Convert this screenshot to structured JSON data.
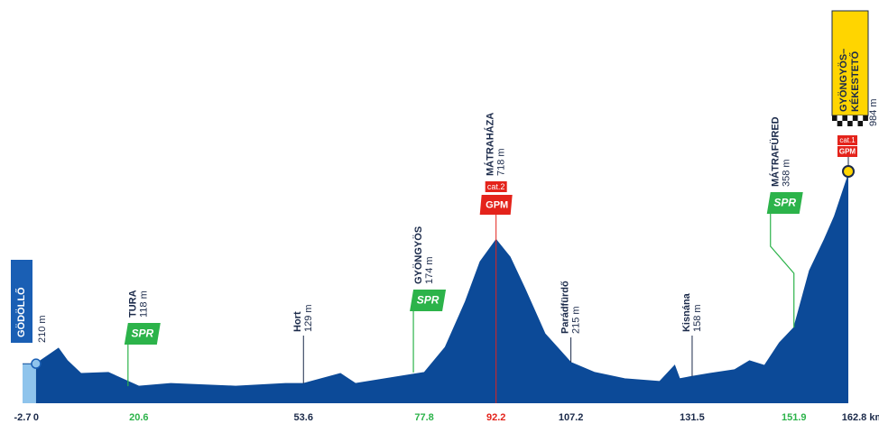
{
  "chart_data": {
    "type": "area",
    "x": [
      -2.7,
      0,
      2.7,
      4.5,
      6.3,
      9,
      14.5,
      20.6,
      27,
      40,
      50,
      53.6,
      61,
      64,
      72,
      77.8,
      82,
      86,
      89,
      92.2,
      95,
      98,
      102,
      107.2,
      112,
      118,
      125,
      128,
      129,
      131.5,
      135,
      140,
      143,
      146,
      149,
      151.9,
      155,
      158,
      160,
      162.8
    ],
    "values": [
      210,
      210,
      248,
      273,
      222,
      170,
      174,
      118,
      129,
      118,
      129,
      129,
      170,
      129,
      155,
      174,
      277,
      462,
      628,
      718,
      647,
      517,
      333,
      215,
      174,
      148,
      137,
      203,
      148,
      158,
      170,
      185,
      222,
      203,
      296,
      358,
      591,
      720,
      813,
      984
    ],
    "color": "#0c4a98",
    "neutral_color": "#8fc4ec",
    "xlim": [
      -2.7,
      162.8
    ],
    "ylim": [
      48,
      1700
    ],
    "xticks": [
      -2.7,
      0,
      20.6,
      53.6,
      77.8,
      92.2,
      107.2,
      131.5,
      151.9,
      {
        "value": 162.8,
        "label": "162.8 km"
      }
    ],
    "sprint_color": "#2cb34a",
    "climb_color": "#e4231b",
    "finish_color": "#ffd500",
    "annotations": [
      {
        "x": 0,
        "name": "GÖDÖLLŐ",
        "elevation": "210 m",
        "kind": "start"
      },
      {
        "x": 20.6,
        "name": "TURA",
        "elevation": "118 m",
        "kind": "sprint",
        "badge": "SPR"
      },
      {
        "x": 53.6,
        "name": "Hort",
        "elevation": "129 m",
        "kind": "town"
      },
      {
        "x": 77.8,
        "name": "GYÖNGYÖS",
        "elevation": "174 m",
        "kind": "sprint",
        "badge": "SPR"
      },
      {
        "x": 92.2,
        "name": "MÁTRAHÁZA",
        "elevation": "718 m",
        "kind": "climb",
        "category": "cat.2",
        "badge": "GPM"
      },
      {
        "x": 107.2,
        "name": "Parádfürdő",
        "elevation": "215 m",
        "kind": "town"
      },
      {
        "x": 131.5,
        "name": "Kisnána",
        "elevation": "158 m",
        "kind": "town"
      },
      {
        "x": 151.9,
        "name": "MÁTRAFÜRED",
        "elevation": "358 m",
        "kind": "sprint",
        "badge": "SPR"
      },
      {
        "x": 162.8,
        "name": [
          "GYÖNGYÖS–",
          "KÉKESTETŐ"
        ],
        "elevation": "984 m",
        "kind": "finish",
        "category": "cat.1",
        "badge": "GPM"
      }
    ]
  }
}
